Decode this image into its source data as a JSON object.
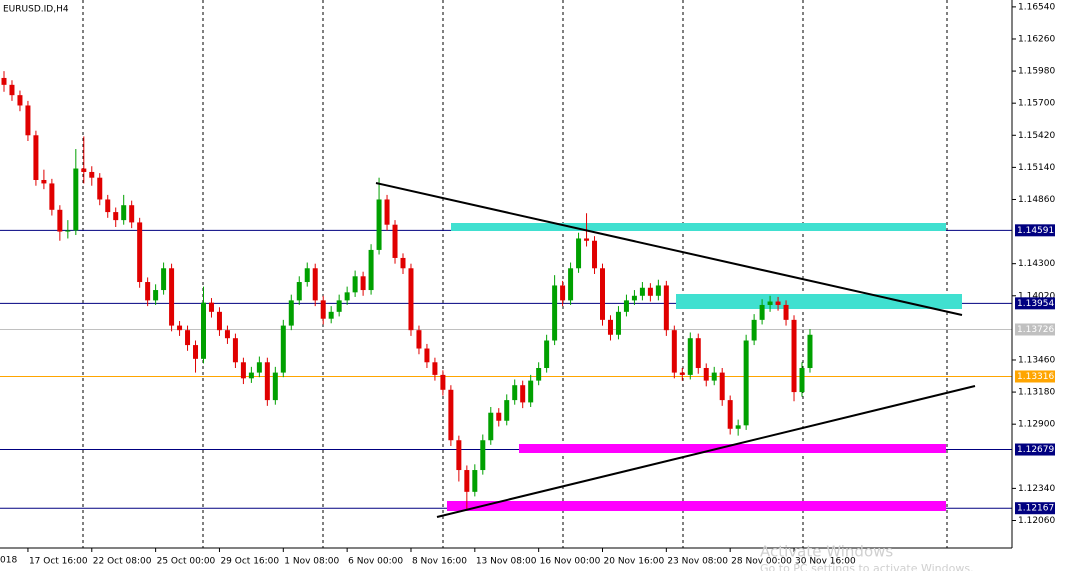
{
  "chart_data": {
    "type": "candlestick",
    "title": "EURUSD.ID,H4",
    "up_color": "#00a000",
    "down_color": "#e00000",
    "ylim": [
      1.1182,
      1.166
    ],
    "yticks": [
      {
        "value": 1.1654,
        "label": "1.16540"
      },
      {
        "value": 1.1626,
        "label": "1.16260"
      },
      {
        "value": 1.1598,
        "label": "1.15980"
      },
      {
        "value": 1.157,
        "label": "1.15700"
      },
      {
        "value": 1.1542,
        "label": "1.15420"
      },
      {
        "value": 1.1514,
        "label": "1.15140"
      },
      {
        "value": 1.1486,
        "label": "1.14860"
      },
      {
        "value": 1.143,
        "label": "1.14300"
      },
      {
        "value": 1.1402,
        "label": "1.14020"
      },
      {
        "value": 1.1346,
        "label": "1.13460"
      },
      {
        "value": 1.1318,
        "label": "1.13180"
      },
      {
        "value": 1.129,
        "label": "1.12900"
      },
      {
        "value": 1.1234,
        "label": "1.12340"
      },
      {
        "value": 1.1206,
        "label": "1.12060"
      }
    ],
    "levels": [
      {
        "value": 1.14591,
        "color": "#000080"
      },
      {
        "value": 1.13954,
        "color": "#000080"
      },
      {
        "value": 1.13726,
        "color": "#c0c0c0"
      },
      {
        "value": 1.13316,
        "color": "#ffa500"
      },
      {
        "value": 1.12679,
        "color": "#000080"
      },
      {
        "value": 1.12167,
        "color": "#000080"
      }
    ],
    "edge_label": "018",
    "watermark": [
      "Activate Windows",
      "Go to PC settings to activate Windows."
    ],
    "categories": [
      null,
      null,
      null,
      "17 Oct 16:00",
      null,
      null,
      null,
      null,
      null,
      null,
      null,
      "22 Oct 08:00",
      null,
      null,
      null,
      null,
      null,
      null,
      null,
      "25 Oct 00:00",
      null,
      null,
      null,
      null,
      null,
      null,
      null,
      "29 Oct 16:00",
      null,
      null,
      null,
      null,
      null,
      null,
      null,
      "1 Nov 08:00",
      null,
      null,
      null,
      null,
      null,
      null,
      null,
      "6 Nov 00:00",
      null,
      null,
      null,
      null,
      null,
      null,
      null,
      "8 Nov 16:00",
      null,
      null,
      null,
      null,
      null,
      null,
      null,
      "13 Nov 08:00",
      null,
      null,
      null,
      null,
      null,
      null,
      null,
      "16 Nov 00:00",
      null,
      null,
      null,
      null,
      null,
      null,
      null,
      "20 Nov 16:00",
      null,
      null,
      null,
      null,
      null,
      null,
      null,
      "23 Nov 08:00",
      null,
      null,
      null,
      null,
      null,
      null,
      null,
      "28 Nov 00:00",
      null,
      null,
      null,
      null,
      null,
      null,
      null,
      "30 Nov 16:00",
      null,
      null
    ],
    "ohlc": [
      [
        1.1592,
        1.1598,
        1.158,
        1.1586
      ],
      [
        1.1586,
        1.159,
        1.1572,
        1.1577
      ],
      [
        1.1577,
        1.1581,
        1.1563,
        1.1568
      ],
      [
        1.1568,
        1.1572,
        1.1537,
        1.1542
      ],
      [
        1.1542,
        1.1546,
        1.1498,
        1.1503
      ],
      [
        1.1503,
        1.1512,
        1.1495,
        1.15
      ],
      [
        1.15,
        1.1504,
        1.1472,
        1.1477
      ],
      [
        1.1477,
        1.1481,
        1.145,
        1.1458
      ],
      [
        1.1458,
        1.1468,
        1.1452,
        1.1459
      ],
      [
        1.1459,
        1.153,
        1.1455,
        1.1513
      ],
      [
        1.1513,
        1.1541,
        1.15,
        1.151
      ],
      [
        1.151,
        1.1515,
        1.1498,
        1.1505
      ],
      [
        1.1505,
        1.1509,
        1.1481,
        1.1486
      ],
      [
        1.1486,
        1.149,
        1.147,
        1.1475
      ],
      [
        1.1475,
        1.1479,
        1.1462,
        1.1468
      ],
      [
        1.1468,
        1.149,
        1.1464,
        1.1481
      ],
      [
        1.1481,
        1.1485,
        1.1461,
        1.1466
      ],
      [
        1.1466,
        1.147,
        1.1409,
        1.1414
      ],
      [
        1.1414,
        1.1418,
        1.1393,
        1.1398
      ],
      [
        1.1398,
        1.1412,
        1.1394,
        1.1407
      ],
      [
        1.1407,
        1.1431,
        1.1403,
        1.1426
      ],
      [
        1.1426,
        1.143,
        1.1371,
        1.1376
      ],
      [
        1.1376,
        1.138,
        1.1367,
        1.1372
      ],
      [
        1.1372,
        1.1376,
        1.1354,
        1.1359
      ],
      [
        1.1359,
        1.1363,
        1.1335,
        1.1347
      ],
      [
        1.1347,
        1.141,
        1.1343,
        1.1396
      ],
      [
        1.1396,
        1.14,
        1.1383,
        1.1388
      ],
      [
        1.1388,
        1.1392,
        1.1367,
        1.1372
      ],
      [
        1.1372,
        1.1376,
        1.136,
        1.1365
      ],
      [
        1.1365,
        1.1369,
        1.1339,
        1.1344
      ],
      [
        1.1344,
        1.1348,
        1.1325,
        1.133
      ],
      [
        1.133,
        1.134,
        1.1326,
        1.1335
      ],
      [
        1.1335,
        1.1349,
        1.1331,
        1.1344
      ],
      [
        1.1344,
        1.1348,
        1.1306,
        1.1311
      ],
      [
        1.1311,
        1.134,
        1.1307,
        1.1335
      ],
      [
        1.1335,
        1.1381,
        1.1331,
        1.1376
      ],
      [
        1.1376,
        1.1403,
        1.1372,
        1.1398
      ],
      [
        1.1398,
        1.1419,
        1.1394,
        1.1414
      ],
      [
        1.1414,
        1.1431,
        1.141,
        1.1426
      ],
      [
        1.1426,
        1.143,
        1.1393,
        1.1398
      ],
      [
        1.1398,
        1.1402,
        1.1377,
        1.1382
      ],
      [
        1.1382,
        1.1393,
        1.1378,
        1.1388
      ],
      [
        1.1388,
        1.1403,
        1.1384,
        1.1398
      ],
      [
        1.1398,
        1.141,
        1.1394,
        1.1405
      ],
      [
        1.1405,
        1.1424,
        1.1401,
        1.1419
      ],
      [
        1.1419,
        1.1423,
        1.1402,
        1.1407
      ],
      [
        1.1407,
        1.1447,
        1.1403,
        1.1442
      ],
      [
        1.1442,
        1.1505,
        1.1438,
        1.1486
      ],
      [
        1.1486,
        1.149,
        1.1459,
        1.1464
      ],
      [
        1.1464,
        1.1468,
        1.143,
        1.1435
      ],
      [
        1.1435,
        1.1439,
        1.1421,
        1.1426
      ],
      [
        1.1426,
        1.143,
        1.1367,
        1.1372
      ],
      [
        1.1372,
        1.1376,
        1.1351,
        1.1356
      ],
      [
        1.1356,
        1.136,
        1.1339,
        1.1344
      ],
      [
        1.1344,
        1.1348,
        1.1328,
        1.1333
      ],
      [
        1.1333,
        1.1337,
        1.1315,
        1.132
      ],
      [
        1.132,
        1.1324,
        1.1271,
        1.1276
      ],
      [
        1.1276,
        1.128,
        1.124,
        1.125
      ],
      [
        1.125,
        1.1254,
        1.1215,
        1.1231
      ],
      [
        1.1231,
        1.1255,
        1.1227,
        1.125
      ],
      [
        1.125,
        1.1281,
        1.1246,
        1.1276
      ],
      [
        1.1276,
        1.1305,
        1.1272,
        1.13
      ],
      [
        1.13,
        1.1304,
        1.1288,
        1.1293
      ],
      [
        1.1293,
        1.1316,
        1.1289,
        1.1311
      ],
      [
        1.1311,
        1.1329,
        1.1307,
        1.1324
      ],
      [
        1.1324,
        1.1328,
        1.1304,
        1.1309
      ],
      [
        1.1309,
        1.1333,
        1.1305,
        1.1328
      ],
      [
        1.1328,
        1.1344,
        1.1324,
        1.1339
      ],
      [
        1.1339,
        1.1368,
        1.1335,
        1.1363
      ],
      [
        1.1363,
        1.142,
        1.1359,
        1.1411
      ],
      [
        1.1411,
        1.1415,
        1.1393,
        1.1398
      ],
      [
        1.1398,
        1.1431,
        1.1394,
        1.1426
      ],
      [
        1.1426,
        1.1457,
        1.1422,
        1.1452
      ],
      [
        1.1452,
        1.1474,
        1.1445,
        1.145
      ],
      [
        1.145,
        1.1454,
        1.1421,
        1.1426
      ],
      [
        1.1426,
        1.143,
        1.1376,
        1.1381
      ],
      [
        1.1381,
        1.1385,
        1.1363,
        1.1368
      ],
      [
        1.1368,
        1.1393,
        1.1364,
        1.1388
      ],
      [
        1.1388,
        1.1403,
        1.1384,
        1.1398
      ],
      [
        1.1398,
        1.1407,
        1.1394,
        1.1402
      ],
      [
        1.1402,
        1.1414,
        1.1398,
        1.1409
      ],
      [
        1.1409,
        1.1413,
        1.1397,
        1.1402
      ],
      [
        1.1402,
        1.1416,
        1.1398,
        1.1411
      ],
      [
        1.1411,
        1.1415,
        1.1367,
        1.1372
      ],
      [
        1.1372,
        1.1376,
        1.133,
        1.1335
      ],
      [
        1.1335,
        1.1339,
        1.1328,
        1.1333
      ],
      [
        1.1333,
        1.137,
        1.1329,
        1.1365
      ],
      [
        1.1365,
        1.1369,
        1.1334,
        1.1339
      ],
      [
        1.1339,
        1.1343,
        1.1323,
        1.1328
      ],
      [
        1.1328,
        1.134,
        1.1324,
        1.1335
      ],
      [
        1.1335,
        1.1339,
        1.1306,
        1.1311
      ],
      [
        1.1311,
        1.1315,
        1.1281,
        1.1286
      ],
      [
        1.1286,
        1.1294,
        1.128,
        1.1289
      ],
      [
        1.1289,
        1.1368,
        1.1285,
        1.1363
      ],
      [
        1.1363,
        1.1386,
        1.1359,
        1.1381
      ],
      [
        1.1381,
        1.1399,
        1.1377,
        1.1394
      ],
      [
        1.1394,
        1.1402,
        1.1388,
        1.1397
      ],
      [
        1.1397,
        1.1401,
        1.1389,
        1.1394
      ],
      [
        1.1394,
        1.1398,
        1.1376,
        1.1381
      ],
      [
        1.1381,
        1.1385,
        1.131,
        1.1318
      ],
      [
        1.1318,
        1.1344,
        1.1314,
        1.1339
      ],
      [
        1.1339,
        1.1373,
        1.1335,
        1.1368
      ]
    ]
  }
}
